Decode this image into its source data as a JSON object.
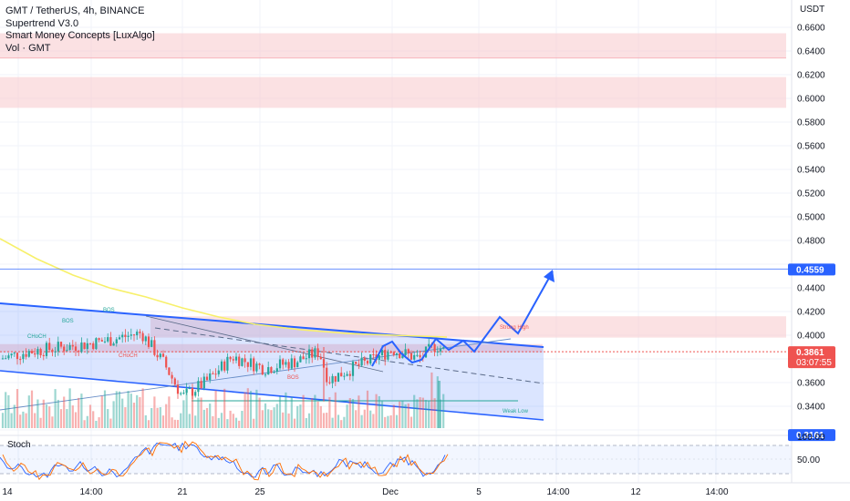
{
  "legend": {
    "title": "GMT / TetherUS, 4h, BINANCE",
    "indicator1": "Supertrend V3.0",
    "indicator2": "Smart Money Concepts [LuxAlgo]",
    "indicator3": "Vol · GMT"
  },
  "chart_data": {
    "type": "candlestick",
    "symbol": "GMT / TetherUS",
    "interval": "4h",
    "exchange": "BINANCE",
    "currency": "USDT",
    "y_ticks": [
      "0.6600",
      "0.6400",
      "0.6200",
      "0.6000",
      "0.5800",
      "0.5600",
      "0.5400",
      "0.5200",
      "0.5000",
      "0.4800",
      "0.4400",
      "0.4200",
      "0.4000",
      "0.3600",
      "0.3400"
    ],
    "x_ticks": [
      "14",
      "14:00",
      "21",
      "25",
      "Dec",
      "5",
      "14:00",
      "12",
      "14:00"
    ],
    "ylim": [
      0.312,
      0.672
    ],
    "last_price": "0.3861",
    "countdown": "03:07:55",
    "target_level": "0.4559",
    "lower_level": "0.3161",
    "stoch": {
      "label": "Stoch",
      "ticks": [
        "100.00",
        "50.00"
      ],
      "bands": [
        80,
        20
      ]
    },
    "annotations": [
      "BOS",
      "BOS",
      "CHoCH",
      "CHoCH",
      "BOS",
      "Strong High",
      "Weak Low"
    ],
    "supply_zones": [
      [
        0.634,
        0.655
      ],
      [
        0.592,
        0.618
      ],
      [
        0.398,
        0.416
      ]
    ],
    "colors": {
      "up": "#26a69a",
      "down": "#ef5350",
      "channel": "#2962ff",
      "projection": "#2962ff",
      "supertrend": "#f7f06a",
      "zone": "#f8c8cc",
      "stoch_k": "#2962ff",
      "stoch_d": "#ff6d00"
    }
  }
}
